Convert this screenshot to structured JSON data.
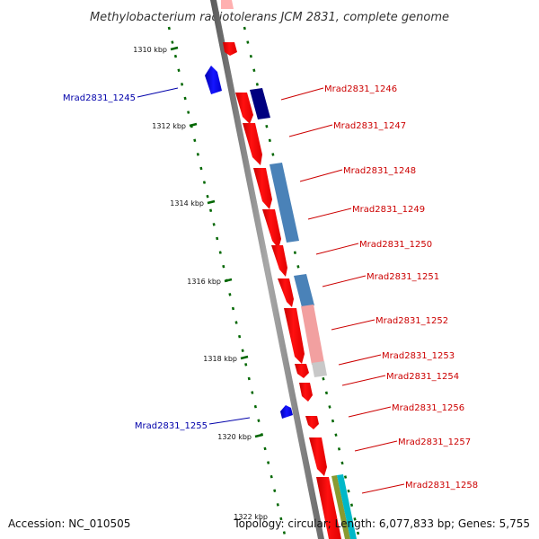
{
  "title": "Methylobacterium radiotolerans JCM 2831, complete genome",
  "footer": {
    "accession": "Accession: NC_010505",
    "info": "Topology: circular; Length: 6,077,833 bp; Genes: 5,755"
  },
  "colors": {
    "forward": "#ff0000",
    "reverse": "#0000ff",
    "forward_label": "#cc0000",
    "reverse_label": "#0000aa",
    "tick": "#006600",
    "backbone": "#808080"
  },
  "ruler": {
    "unit": "kbp",
    "ticks": [
      {
        "kbp": 1310,
        "label": "1310 kbp"
      },
      {
        "kbp": 1312,
        "label": "1312 kbp"
      },
      {
        "kbp": 1314,
        "label": "1314 kbp"
      },
      {
        "kbp": 1316,
        "label": "1316 kbp"
      },
      {
        "kbp": 1318,
        "label": "1318 kbp"
      },
      {
        "kbp": 1320,
        "label": "1320 kbp"
      },
      {
        "kbp": 1322,
        "label": "1322 kbp"
      }
    ]
  },
  "genes": [
    {
      "id": "Mrad2831_1245",
      "strand": "reverse"
    },
    {
      "id": "Mrad2831_1246",
      "strand": "forward"
    },
    {
      "id": "Mrad2831_1247",
      "strand": "forward"
    },
    {
      "id": "Mrad2831_1248",
      "strand": "forward"
    },
    {
      "id": "Mrad2831_1249",
      "strand": "forward"
    },
    {
      "id": "Mrad2831_1250",
      "strand": "forward"
    },
    {
      "id": "Mrad2831_1251",
      "strand": "forward"
    },
    {
      "id": "Mrad2831_1252",
      "strand": "forward"
    },
    {
      "id": "Mrad2831_1253",
      "strand": "forward"
    },
    {
      "id": "Mrad2831_1254",
      "strand": "forward"
    },
    {
      "id": "Mrad2831_1255",
      "strand": "reverse"
    },
    {
      "id": "Mrad2831_1256",
      "strand": "forward"
    },
    {
      "id": "Mrad2831_1257",
      "strand": "forward"
    },
    {
      "id": "Mrad2831_1258",
      "strand": "forward"
    }
  ]
}
